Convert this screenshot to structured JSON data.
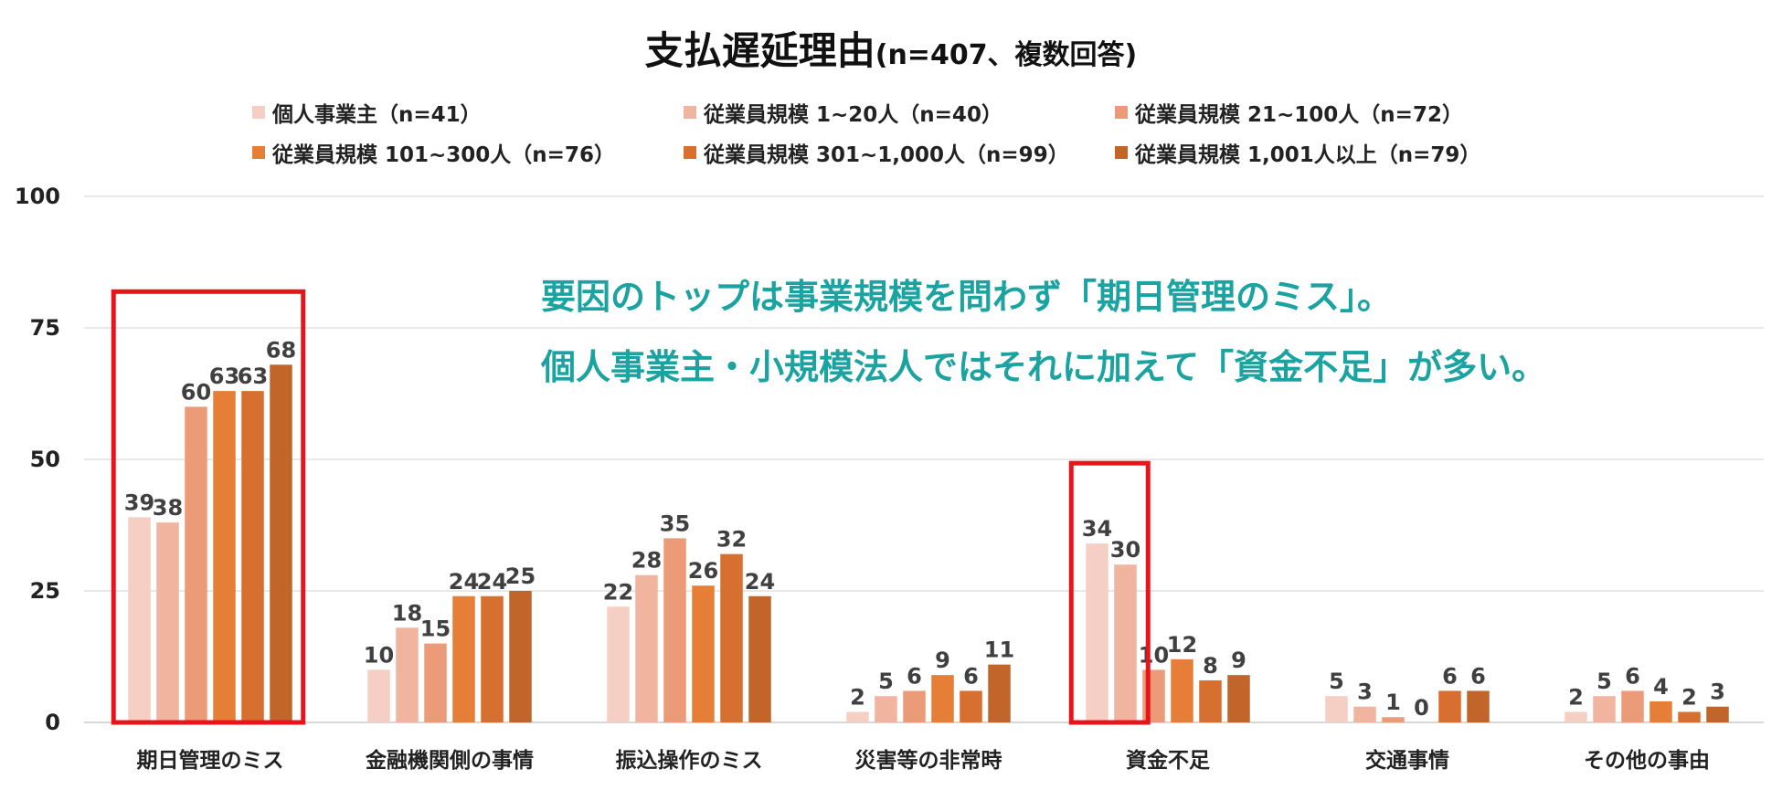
{
  "chart_data": {
    "type": "bar",
    "title": "支払遅延理由",
    "subtitle": "(n=407、複数回答)",
    "categories": [
      "期日管理のミス",
      "金融機関側の事情",
      "振込操作のミス",
      "災害等の非常時",
      "資金不足",
      "交通事情",
      "その他の事由"
    ],
    "series": [
      {
        "name": "個人事業主（n=41）",
        "color": "#f5cfc3",
        "values": [
          39,
          10,
          22,
          2,
          34,
          5,
          2
        ]
      },
      {
        "name": "従業員規模 1~20人（n=40）",
        "color": "#f1b49f",
        "values": [
          38,
          18,
          28,
          5,
          30,
          3,
          5
        ]
      },
      {
        "name": "従業員規模 21~100人（n=72）",
        "color": "#ec9b79",
        "values": [
          60,
          15,
          35,
          6,
          10,
          1,
          6
        ]
      },
      {
        "name": "従業員規模 101~300人（n=76）",
        "color": "#e77e37",
        "values": [
          63,
          24,
          26,
          9,
          12,
          0,
          4
        ]
      },
      {
        "name": "従業員規模 301~1,000人（n=99）",
        "color": "#d66f2f",
        "values": [
          63,
          24,
          32,
          6,
          8,
          6,
          2
        ]
      },
      {
        "name": "従業員規模 1,001人以上（n=79）",
        "color": "#c2652b",
        "values": [
          68,
          25,
          24,
          11,
          9,
          6,
          3
        ]
      }
    ],
    "ylim": [
      0,
      100
    ],
    "yticks": [
      0,
      25,
      50,
      75,
      100
    ],
    "xlabel": "",
    "ylabel": "",
    "grid": true,
    "legend_position": "top",
    "annotations": [
      "要因のトップは事業規模を問わず「期日管理のミス」。",
      "個人事業主・小規模法人ではそれに加えて「資金不足」が多い。"
    ],
    "highlighted_categories": [
      "期日管理のミス",
      "資金不足"
    ],
    "colors": {
      "annotation": "#1aa3a0",
      "highlight": "#e8141b",
      "grid": "#d9d9d9",
      "value_label": "#404040"
    }
  }
}
